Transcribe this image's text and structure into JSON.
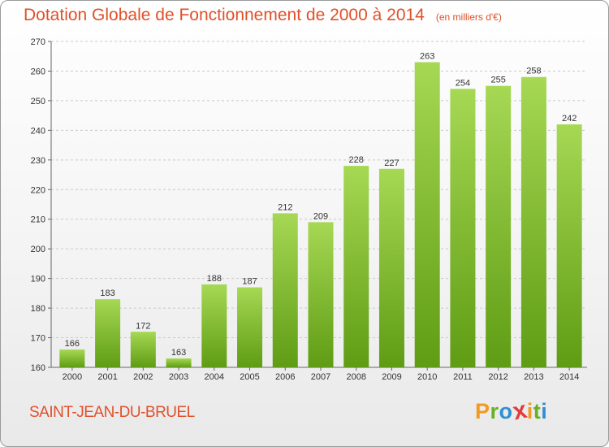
{
  "title": "Dotation Globale de Fonctionnement de 2000 à 2014",
  "unit_note": "(en milliers d'€)",
  "commune": "SAINT-JEAN-DU-BRUEL",
  "logo": {
    "letters": [
      "P",
      "r",
      "o",
      "x",
      "i",
      "t",
      "i"
    ],
    "colors": [
      "#f29a1f",
      "#6ab023",
      "#2e8fd6",
      "#e23b3b",
      "#f29a1f",
      "#6ab023",
      "#2e8fd6"
    ]
  },
  "colors": {
    "bar_light": "#a6d854",
    "bar_dark": "#5f9c14",
    "accent": "#e0502a"
  },
  "chart_data": {
    "type": "bar",
    "title": "Dotation Globale de Fonctionnement de 2000 à 2014",
    "xlabel": "",
    "ylabel": "",
    "categories": [
      "2000",
      "2001",
      "2002",
      "2003",
      "2004",
      "2005",
      "2006",
      "2007",
      "2008",
      "2009",
      "2010",
      "2011",
      "2012",
      "2013",
      "2014"
    ],
    "values": [
      166,
      183,
      172,
      163,
      188,
      187,
      212,
      209,
      228,
      227,
      263,
      254,
      255,
      258,
      242
    ],
    "ylim": [
      160,
      270
    ],
    "yticks": [
      160,
      170,
      180,
      190,
      200,
      210,
      220,
      230,
      240,
      250,
      260,
      270
    ],
    "grid": "horizontal dashed"
  }
}
